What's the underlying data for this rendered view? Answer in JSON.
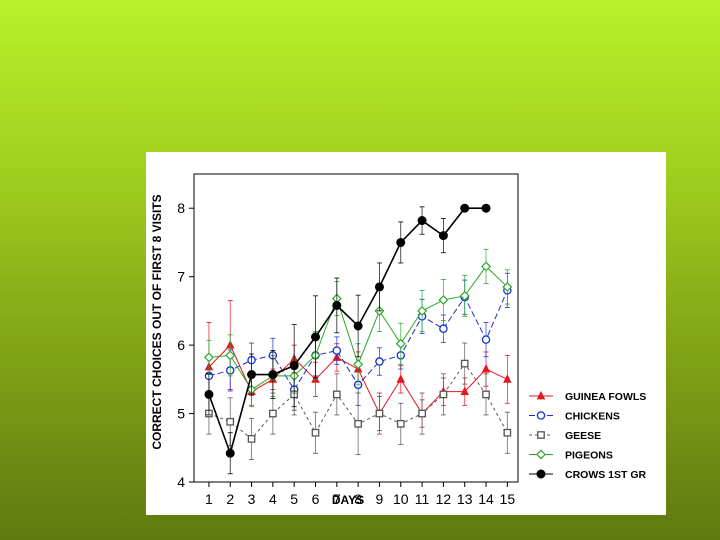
{
  "chart_data": {
    "type": "line",
    "xlabel": "DAYS",
    "ylabel": "CORRECT CHOICES OUT OF FIRST 8 VISITS",
    "x": [
      1,
      2,
      3,
      4,
      5,
      6,
      7,
      8,
      9,
      10,
      11,
      12,
      13,
      14,
      15
    ],
    "xlim": [
      0.3,
      15.5
    ],
    "ylim": [
      4,
      8.5
    ],
    "yticks": [
      4,
      5,
      6,
      7,
      8
    ],
    "legend_position": "right",
    "series": [
      {
        "name": "GUINEA FOWLS",
        "color": "#e8141e",
        "marker": "triangle-filled",
        "dash": "none",
        "x": [
          1,
          2,
          3,
          4,
          5,
          6,
          7,
          8,
          9,
          10,
          11,
          12,
          13,
          14,
          15
        ],
        "values": [
          5.68,
          6.0,
          5.32,
          5.5,
          5.8,
          5.5,
          5.82,
          5.65,
          5.0,
          5.5,
          5.0,
          5.32,
          5.32,
          5.65,
          5.5
        ],
        "errors": [
          0.65,
          0.65,
          0.2,
          0.15,
          0.2,
          0.25,
          0.2,
          0.25,
          0.3,
          0.2,
          0.2,
          0.2,
          0.2,
          0.25,
          0.35
        ]
      },
      {
        "name": "CHICKENS",
        "color": "#1a2fd0",
        "marker": "circle-open",
        "dash": "6,3",
        "x": [
          1,
          2,
          3,
          4,
          5,
          6,
          7,
          8,
          9,
          10,
          11,
          12,
          13,
          14,
          15
        ],
        "values": [
          5.55,
          5.63,
          5.78,
          5.85,
          5.35,
          5.85,
          5.92,
          5.42,
          5.76,
          5.85,
          6.42,
          6.24,
          6.7,
          6.08,
          6.8
        ],
        "errors": [
          0.3,
          0.3,
          0.25,
          0.25,
          0.3,
          0.3,
          0.2,
          0.3,
          0.2,
          0.2,
          0.25,
          0.2,
          0.25,
          0.25,
          0.25
        ]
      },
      {
        "name": "GEESE",
        "color": "#555555",
        "marker": "square-open",
        "dash": "3,3",
        "x": [
          1,
          2,
          3,
          4,
          5,
          6,
          7,
          8,
          9,
          10,
          11,
          12,
          13,
          14,
          15
        ],
        "values": [
          5.0,
          4.88,
          4.63,
          5.0,
          5.28,
          4.72,
          5.28,
          4.85,
          5.0,
          4.85,
          5.0,
          5.28,
          5.73,
          5.28,
          4.72
        ],
        "errors": [
          0.3,
          0.35,
          0.3,
          0.3,
          0.3,
          0.3,
          0.3,
          0.45,
          0.25,
          0.3,
          0.3,
          0.3,
          0.3,
          0.3,
          0.3
        ]
      },
      {
        "name": "PIGEONS",
        "color": "#2aa82a",
        "marker": "diamond-open",
        "dash": "none",
        "x": [
          1,
          2,
          3,
          4,
          5,
          6,
          7,
          8,
          9,
          10,
          11,
          12,
          13,
          14,
          15
        ],
        "values": [
          5.82,
          5.85,
          5.35,
          5.55,
          5.55,
          5.85,
          6.68,
          5.72,
          6.5,
          6.02,
          6.5,
          6.66,
          6.72,
          7.15,
          6.85
        ],
        "errors": [
          0.25,
          0.3,
          0.25,
          0.3,
          0.25,
          0.35,
          0.25,
          0.3,
          0.3,
          0.3,
          0.3,
          0.3,
          0.3,
          0.25,
          0.25
        ]
      },
      {
        "name": "CROWS 1ST GR",
        "color": "#000000",
        "marker": "circle-filled",
        "dash": "none",
        "x": [
          1,
          2,
          3,
          4,
          5,
          6,
          7,
          8,
          9,
          10,
          11,
          12,
          13,
          14
        ],
        "values": [
          5.28,
          4.42,
          5.57,
          5.57,
          5.7,
          6.12,
          6.58,
          6.28,
          6.85,
          7.5,
          7.82,
          7.6,
          8.0,
          8.0
        ],
        "errors": [
          0.3,
          0.3,
          0.3,
          0.35,
          0.6,
          0.6,
          0.4,
          0.45,
          0.35,
          0.3,
          0.2,
          0.25,
          0.0,
          0.0
        ]
      }
    ]
  }
}
